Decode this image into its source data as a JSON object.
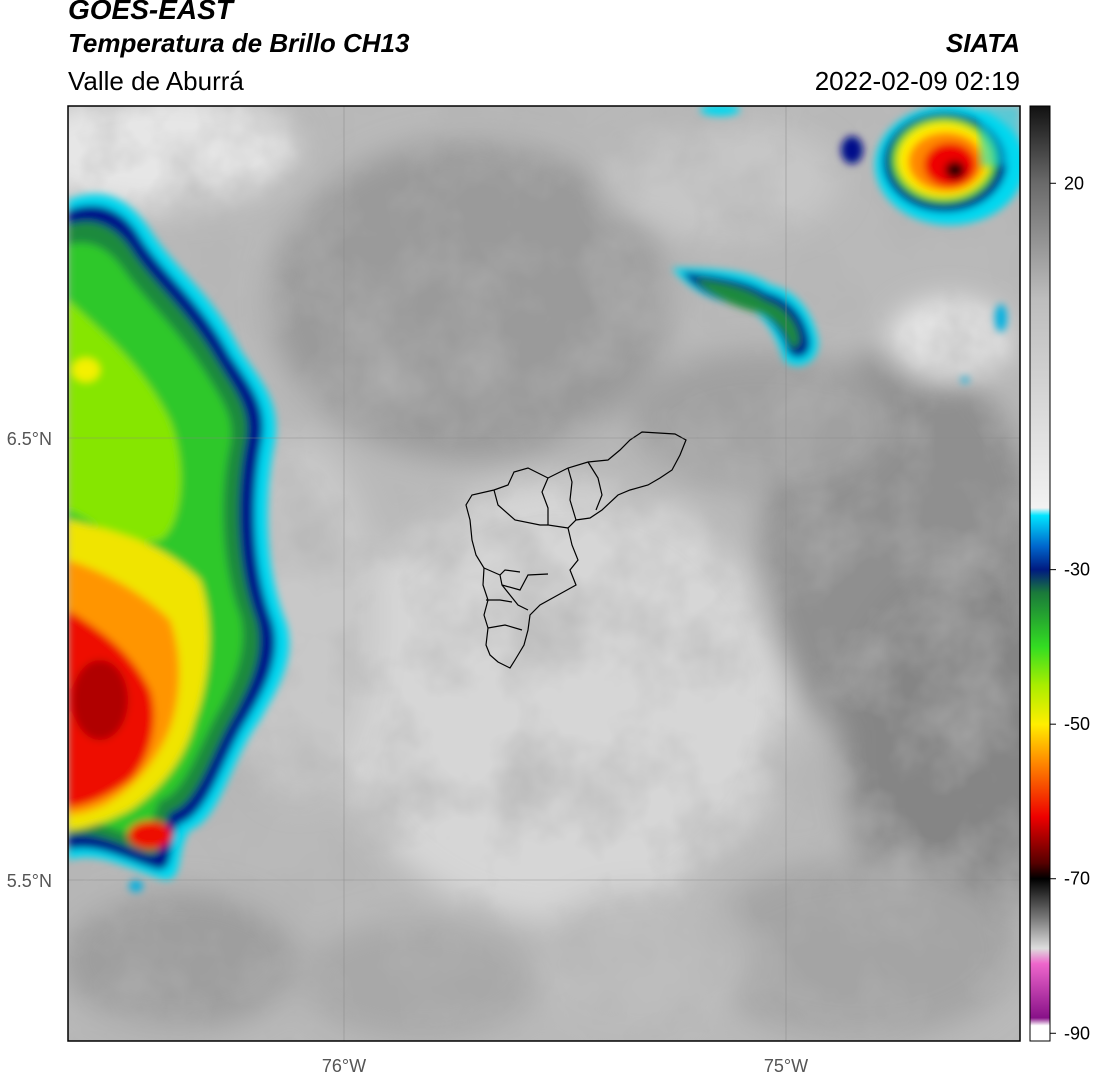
{
  "header": {
    "satellite": "GOES-EAST",
    "product": "Temperatura de Brillo CH13",
    "region": "Valle de Aburrá",
    "agency": "SIATA",
    "datetime": "2022-02-09 02:19"
  },
  "map": {
    "lat_ticks": [
      "6.5°N",
      "5.5°N"
    ],
    "lon_ticks": [
      "76°W",
      "75°W"
    ]
  },
  "colorbar": {
    "ticks": [
      "20",
      "-30",
      "-50",
      "-70",
      "-90"
    ],
    "stops": [
      {
        "v": 30,
        "c": "#111111"
      },
      {
        "v": 20,
        "c": "#6a6a6a"
      },
      {
        "v": 5,
        "c": "#bdbdbd"
      },
      {
        "v": -22,
        "c": "#f2f2f2"
      },
      {
        "v": -23,
        "c": "#00e5ff"
      },
      {
        "v": -27,
        "c": "#0066cc"
      },
      {
        "v": -30,
        "c": "#001a80"
      },
      {
        "v": -33,
        "c": "#1a7a3a"
      },
      {
        "v": -40,
        "c": "#33dd22"
      },
      {
        "v": -45,
        "c": "#aaee00"
      },
      {
        "v": -50,
        "c": "#ffee00"
      },
      {
        "v": -55,
        "c": "#ff8800"
      },
      {
        "v": -62,
        "c": "#ee0000"
      },
      {
        "v": -68,
        "c": "#550000"
      },
      {
        "v": -70,
        "c": "#000000"
      },
      {
        "v": -75,
        "c": "#777777"
      },
      {
        "v": -79,
        "c": "#dddddd"
      },
      {
        "v": -81,
        "c": "#ee66cc"
      },
      {
        "v": -88,
        "c": "#881188"
      },
      {
        "v": -89,
        "c": "#ffffff"
      },
      {
        "v": -91,
        "c": "#ffffff"
      }
    ]
  }
}
